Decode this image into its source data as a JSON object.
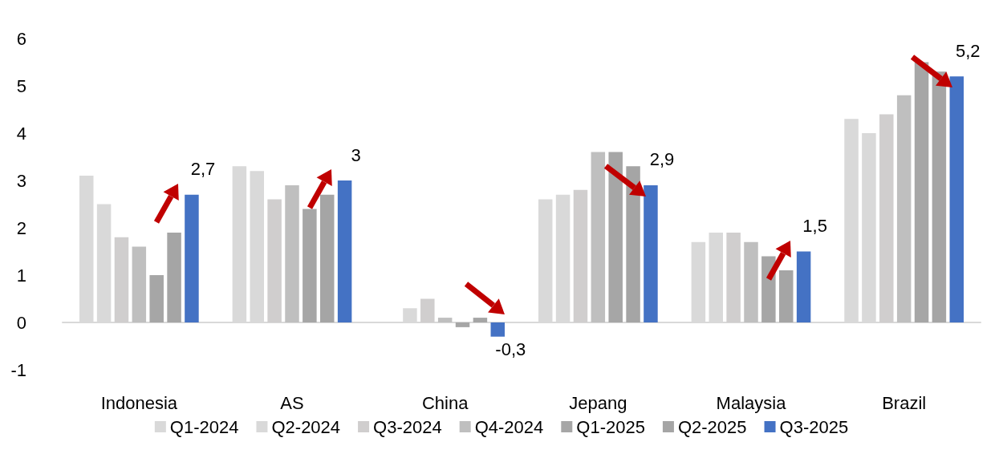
{
  "chart_data": {
    "type": "bar",
    "categories": [
      "Indonesia",
      "AS",
      "China",
      "Jepang",
      "Malaysia",
      "Brazil"
    ],
    "series": [
      {
        "name": "Q1-2024",
        "color": "#d9d9d9",
        "values": [
          3.1,
          3.3,
          null,
          2.6,
          1.7,
          4.3
        ]
      },
      {
        "name": "Q2-2024",
        "color": "#d9d9d9",
        "values": [
          2.5,
          3.2,
          0.3,
          2.7,
          1.9,
          4.0
        ]
      },
      {
        "name": "Q3-2024",
        "color": "#d0cece",
        "values": [
          1.8,
          2.6,
          0.5,
          2.8,
          1.9,
          4.4
        ]
      },
      {
        "name": "Q4-2024",
        "color": "#bfbfbf",
        "values": [
          1.6,
          2.9,
          0.1,
          3.6,
          1.7,
          4.8
        ]
      },
      {
        "name": "Q1-2025",
        "color": "#a6a6a6",
        "values": [
          1.0,
          2.4,
          -0.1,
          3.6,
          1.4,
          5.5
        ]
      },
      {
        "name": "Q2-2025",
        "color": "#a5a5a5",
        "values": [
          1.9,
          2.7,
          0.1,
          3.3,
          1.1,
          5.3
        ]
      },
      {
        "name": "Q3-2025",
        "color": "#4472c4",
        "values": [
          2.7,
          3.0,
          -0.3,
          2.9,
          1.5,
          5.2
        ],
        "value_labels": [
          "2,7",
          "3",
          "-0,3",
          "2,9",
          "1,5",
          "5,2"
        ]
      }
    ],
    "ylim": [
      -1,
      6
    ],
    "yticks": [
      -1,
      0,
      1,
      2,
      3,
      4,
      5,
      6
    ],
    "legend": "bottom"
  }
}
